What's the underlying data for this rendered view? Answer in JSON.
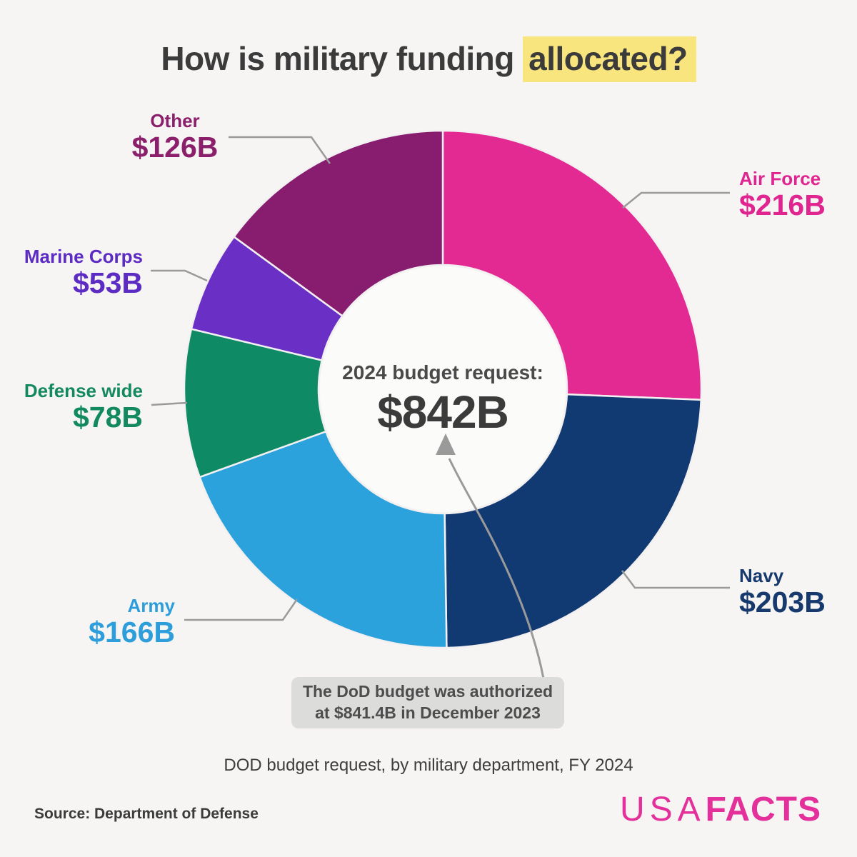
{
  "title": {
    "prefix": "How is military funding ",
    "highlight": "allocated?"
  },
  "chart_data": {
    "type": "pie",
    "subtype": "donut",
    "title": "How is military funding allocated?",
    "caption": "DOD budget request, by military department, FY 2024",
    "unit": "billions USD",
    "total_value_b": 842,
    "center_label": "2024 budget request:",
    "center_value": "$842B",
    "start_angle_deg": 0,
    "direction": "clockwise",
    "inner_radius_ratio": 0.48,
    "segments": [
      {
        "label": "Air Force",
        "value_b": 216,
        "value_label": "$216B",
        "color": "#E32A93",
        "label_color": "#E02490"
      },
      {
        "label": "Navy",
        "value_b": 203,
        "value_label": "$203B",
        "color": "#123A72",
        "label_color": "#16396E"
      },
      {
        "label": "Army",
        "value_b": 166,
        "value_label": "$166B",
        "color": "#2CA2DC",
        "label_color": "#2D9EDB"
      },
      {
        "label": "Defense wide",
        "value_b": 78,
        "value_label": "$78B",
        "color": "#0E8A64",
        "label_color": "#12895E"
      },
      {
        "label": "Marine Corps",
        "value_b": 53,
        "value_label": "$53B",
        "color": "#6A2FC4",
        "label_color": "#5B2BC4"
      },
      {
        "label": "Other",
        "value_b": 126,
        "value_label": "$126B",
        "color": "#881D70",
        "label_color": "#8B1F6B"
      }
    ],
    "annotation": {
      "line1": "The DoD budget was authorized",
      "line2": "at $841.4B in December 2023"
    }
  },
  "footer": {
    "source": "Source: Department of Defense",
    "logo": {
      "part1": "USA",
      "part2": "FACTS"
    }
  },
  "colors": {
    "background": "#F6F5F3",
    "title_text": "#3B3B3B",
    "highlight": "#F9E57D",
    "center_text": "#4A4A4A",
    "leader_line": "#9A9A9A",
    "annotation_bg": "#DCDCDB",
    "annotation_text": "#4D4D4D",
    "logo_pink": "#E3309B",
    "slice_separator": "#F3F0F2",
    "donut_hole": "#FBFBFA"
  }
}
